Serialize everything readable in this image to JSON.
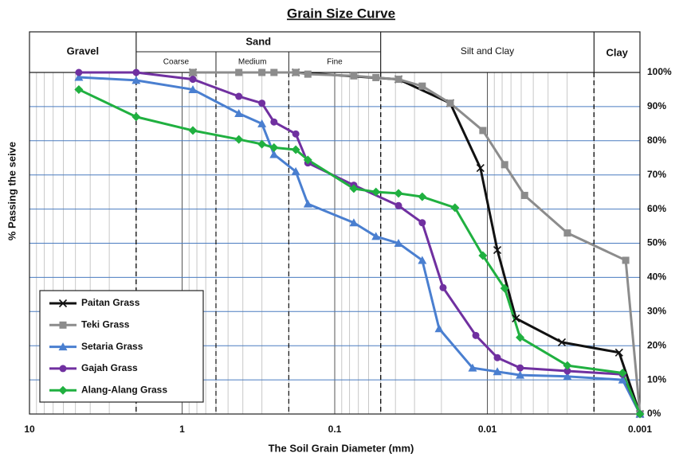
{
  "chart_data": {
    "type": "line",
    "title": "Grain Size Curve",
    "x_label": "The Soil Grain Diameter (mm)",
    "y_label": "% Passing the seive",
    "log_x": true,
    "grid": true,
    "legend": "lower left",
    "xlim": [
      10,
      0.001
    ],
    "xticks": [
      10,
      1,
      0.1,
      0.01,
      0.001
    ],
    "ylim": [
      0,
      100
    ],
    "yticks": [
      {
        "value": 0,
        "label": "0%"
      },
      {
        "value": 10,
        "label": "10%"
      },
      {
        "value": 20,
        "label": "20%"
      },
      {
        "value": 30,
        "label": "30%"
      },
      {
        "value": 40,
        "label": "40%"
      },
      {
        "value": 50,
        "label": "50%"
      },
      {
        "value": 60,
        "label": "60%"
      },
      {
        "value": 70,
        "label": "70%"
      },
      {
        "value": 80,
        "label": "80%"
      },
      {
        "value": 90,
        "label": "90%"
      },
      {
        "value": 100,
        "label": "100%"
      }
    ],
    "zones": [
      {
        "label": "Gravel",
        "range": [
          10,
          2
        ]
      },
      {
        "label": "Sand",
        "range": [
          2,
          0.05
        ],
        "subzones": [
          {
            "label": "Coarse",
            "range": [
              2,
              0.6
            ]
          },
          {
            "label": "Medium",
            "range": [
              0.6,
              0.2
            ]
          },
          {
            "label": "Fine",
            "range": [
              0.2,
              0.05
            ]
          }
        ]
      },
      {
        "label": "Silt and Clay",
        "range": [
          0.05,
          0.002
        ]
      },
      {
        "label": "Clay",
        "range": [
          0.002,
          0.001
        ]
      }
    ],
    "series": [
      {
        "name": "Paitan Grass",
        "color": "#111111",
        "marker": "x",
        "x": [
          0.85,
          0.18,
          0.0382,
          0.0175,
          0.0111,
          0.0086,
          0.0065,
          0.00325,
          0.00137,
          0.001
        ],
        "values": [
          100,
          100,
          98,
          91,
          72,
          48,
          28,
          21,
          18,
          0
        ]
      },
      {
        "name": "Teki Grass",
        "color": "#8c8c8c",
        "marker": "square",
        "x": [
          0.85,
          0.425,
          0.3,
          0.25,
          0.18,
          0.15,
          0.075,
          0.0537,
          0.0382,
          0.0267,
          0.0175,
          0.0107,
          0.0077,
          0.0057,
          0.00299,
          0.00124,
          0.001
        ],
        "values": [
          100,
          100,
          100,
          100,
          100,
          99.5,
          99,
          98.5,
          98,
          96,
          91,
          83,
          73,
          64,
          53,
          45,
          0
        ]
      },
      {
        "name": "Setaria Grass",
        "color": "#4a7fd0",
        "marker": "triangle",
        "x": [
          4.75,
          2,
          0.85,
          0.425,
          0.3,
          0.25,
          0.18,
          0.15,
          0.075,
          0.0537,
          0.0382,
          0.0267,
          0.0207,
          0.0125,
          0.0086,
          0.0061,
          0.00299,
          0.0013,
          0.001
        ],
        "values": [
          98.6,
          97.7,
          95,
          88,
          85,
          76,
          71,
          61.5,
          56,
          52,
          50,
          45,
          25,
          13.5,
          12.4,
          11.4,
          11,
          10,
          0
        ]
      },
      {
        "name": "Gajah Grass",
        "color": "#7030a0",
        "marker": "circle",
        "x": [
          4.75,
          2,
          0.85,
          0.425,
          0.3,
          0.25,
          0.18,
          0.15,
          0.075,
          0.0382,
          0.0267,
          0.0195,
          0.0119,
          0.0086,
          0.0061,
          0.00299,
          0.0013,
          0.001
        ],
        "values": [
          100,
          100,
          98,
          93,
          91,
          85.5,
          82,
          73.5,
          67,
          61,
          56,
          37,
          23,
          16.5,
          13.5,
          12.6,
          11.6,
          0
        ]
      },
      {
        "name": "Alang-Alang Grass",
        "color": "#20b040",
        "marker": "diamond",
        "x": [
          4.75,
          2,
          0.85,
          0.425,
          0.3,
          0.25,
          0.18,
          0.15,
          0.075,
          0.0537,
          0.0382,
          0.0267,
          0.0163,
          0.0107,
          0.0077,
          0.0061,
          0.00299,
          0.0013,
          0.001
        ],
        "values": [
          95,
          87,
          83,
          80.4,
          79,
          78,
          77.4,
          74.4,
          66,
          65,
          64.6,
          63.6,
          60.4,
          46.4,
          36.8,
          22.4,
          14.2,
          12,
          0
        ]
      }
    ]
  }
}
